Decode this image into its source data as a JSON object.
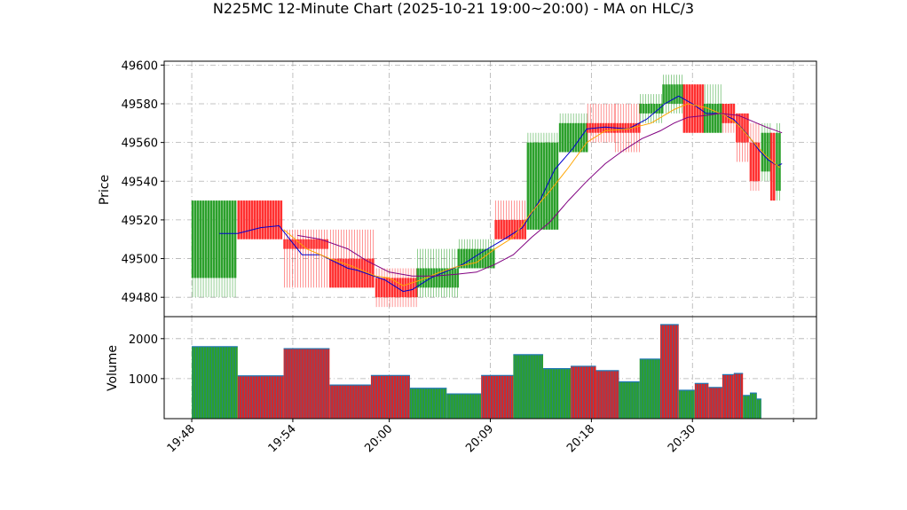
{
  "chart_data": {
    "type": "candlestick",
    "title": "N225MC 12-Minute Chart (2025-10-21 19:00~20:00) - MA on HLC/3",
    "price_panel": {
      "ylabel": "Price",
      "ylim": [
        49470,
        49602
      ],
      "yticks": [
        49480,
        49500,
        49520,
        49540,
        49560,
        49580,
        49600
      ],
      "up_color": "#2ca02c",
      "down_color": "#ff3030",
      "candles": [
        {
          "t": 0.0,
          "w": 1.0,
          "o": 49490,
          "c": 49530,
          "h": 49530,
          "l": 49480
        },
        {
          "t": 1.0,
          "w": 1.0,
          "o": 49530,
          "c": 49510,
          "h": 49530,
          "l": 49510
        },
        {
          "t": 2.0,
          "w": 1.0,
          "o": 49510,
          "c": 49505,
          "h": 49515,
          "l": 49485
        },
        {
          "t": 3.0,
          "w": 1.0,
          "o": 49500,
          "c": 49485,
          "h": 49515,
          "l": 49485
        },
        {
          "t": 4.0,
          "w": 0.9,
          "o": 49490,
          "c": 49480,
          "h": 49495,
          "l": 49475
        },
        {
          "t": 4.9,
          "w": 0.9,
          "o": 49485,
          "c": 49495,
          "h": 49505,
          "l": 49480
        },
        {
          "t": 5.8,
          "w": 0.8,
          "o": 49495,
          "c": 49505,
          "h": 49510,
          "l": 49495
        },
        {
          "t": 6.6,
          "w": 0.7,
          "o": 49520,
          "c": 49510,
          "h": 49530,
          "l": 49510
        },
        {
          "t": 7.3,
          "w": 0.7,
          "o": 49515,
          "c": 49560,
          "h": 49565,
          "l": 49515
        },
        {
          "t": 8.0,
          "w": 0.6,
          "o": 49555,
          "c": 49570,
          "h": 49575,
          "l": 49555
        },
        {
          "t": 8.6,
          "w": 0.6,
          "o": 49570,
          "c": 49565,
          "h": 49580,
          "l": 49560
        },
        {
          "t": 9.2,
          "w": 0.55,
          "o": 49570,
          "c": 49565,
          "h": 49580,
          "l": 49555
        },
        {
          "t": 9.75,
          "w": 0.5,
          "o": 49575,
          "c": 49580,
          "h": 49585,
          "l": 49570
        },
        {
          "t": 10.25,
          "w": 0.45,
          "o": 49580,
          "c": 49590,
          "h": 49595,
          "l": 49575
        },
        {
          "t": 10.7,
          "w": 0.45,
          "o": 49590,
          "c": 49565,
          "h": 49590,
          "l": 49565
        },
        {
          "t": 11.15,
          "w": 0.4,
          "o": 49565,
          "c": 49580,
          "h": 49590,
          "l": 49565
        },
        {
          "t": 11.55,
          "w": 0.3,
          "o": 49580,
          "c": 49570,
          "h": 49580,
          "l": 49565
        },
        {
          "t": 11.85,
          "w": 0.3,
          "o": 49575,
          "c": 49560,
          "h": 49575,
          "l": 49550
        },
        {
          "t": 12.15,
          "w": 0.25,
          "o": 49560,
          "c": 49540,
          "h": 49570,
          "l": 49535
        },
        {
          "t": 12.4,
          "w": 0.2,
          "o": 49545,
          "c": 49565,
          "h": 49570,
          "l": 49540
        },
        {
          "t": 12.6,
          "w": 0.12,
          "o": 49565,
          "c": 49530,
          "h": 49565,
          "l": 49530
        },
        {
          "t": 12.72,
          "w": 0.08,
          "o": 49535,
          "c": 49565,
          "h": 49570,
          "l": 49530
        }
      ],
      "ma_lines": [
        {
          "color": "#0000cc",
          "values": [
            [
              0.6,
              49513
            ],
            [
              1.0,
              49513
            ],
            [
              1.5,
              49516
            ],
            [
              1.9,
              49517
            ],
            [
              2.4,
              49502
            ],
            [
              2.8,
              49502
            ],
            [
              3.4,
              49495
            ],
            [
              3.6,
              49494
            ],
            [
              4.2,
              49489
            ],
            [
              4.6,
              49483
            ],
            [
              4.8,
              49484
            ],
            [
              5.2,
              49490
            ],
            [
              5.6,
              49494
            ],
            [
              5.9,
              49497
            ],
            [
              6.3,
              49503
            ],
            [
              6.8,
              49510
            ],
            [
              7.2,
              49516
            ],
            [
              7.6,
              49531
            ],
            [
              7.9,
              49546
            ],
            [
              8.3,
              49557
            ],
            [
              8.6,
              49567
            ],
            [
              9.0,
              49568
            ],
            [
              9.5,
              49567
            ],
            [
              9.9,
              49572
            ],
            [
              10.3,
              49580
            ],
            [
              10.6,
              49584
            ],
            [
              10.9,
              49580
            ],
            [
              11.2,
              49575
            ],
            [
              11.5,
              49575
            ],
            [
              11.8,
              49572
            ],
            [
              12.1,
              49564
            ],
            [
              12.35,
              49556
            ],
            [
              12.55,
              49551
            ],
            [
              12.75,
              49548
            ],
            [
              12.85,
              49549
            ]
          ]
        },
        {
          "color": "#ffa500",
          "values": [
            [
              2.0,
              49515
            ],
            [
              2.5,
              49505
            ],
            [
              3.0,
              49500
            ],
            [
              3.5,
              49496
            ],
            [
              4.0,
              49491
            ],
            [
              4.3,
              49490
            ],
            [
              4.6,
              49486
            ],
            [
              5.0,
              49489
            ],
            [
              5.4,
              49493
            ],
            [
              5.8,
              49496
            ],
            [
              6.2,
              49498
            ],
            [
              6.6,
              49505
            ],
            [
              7.0,
              49511
            ],
            [
              7.4,
              49524
            ],
            [
              7.8,
              49535
            ],
            [
              8.2,
              49547
            ],
            [
              8.6,
              49560
            ],
            [
              9.0,
              49566
            ],
            [
              9.5,
              49567
            ],
            [
              10.0,
              49570
            ],
            [
              10.5,
              49577
            ],
            [
              10.8,
              49580
            ],
            [
              11.2,
              49578
            ],
            [
              11.6,
              49574
            ],
            [
              11.9,
              49569
            ],
            [
              12.2,
              49561
            ],
            [
              12.5,
              49553
            ],
            [
              12.8,
              49547
            ]
          ]
        },
        {
          "color": "#800080",
          "values": [
            [
              2.3,
              49512
            ],
            [
              2.8,
              49510
            ],
            [
              3.4,
              49505
            ],
            [
              3.8,
              49499
            ],
            [
              4.3,
              49493
            ],
            [
              4.8,
              49491
            ],
            [
              5.3,
              49491
            ],
            [
              5.8,
              49492
            ],
            [
              6.2,
              49493
            ],
            [
              6.6,
              49497
            ],
            [
              7.0,
              49502
            ],
            [
              7.4,
              49511
            ],
            [
              7.8,
              49519
            ],
            [
              8.2,
              49530
            ],
            [
              8.6,
              49540
            ],
            [
              9.0,
              49549
            ],
            [
              9.4,
              49556
            ],
            [
              9.8,
              49562
            ],
            [
              10.2,
              49566
            ],
            [
              10.5,
              49570
            ],
            [
              10.8,
              49573
            ],
            [
              11.2,
              49574
            ],
            [
              11.5,
              49575
            ],
            [
              11.9,
              49574
            ],
            [
              12.2,
              49571
            ],
            [
              12.5,
              49568
            ],
            [
              12.85,
              49565
            ]
          ]
        }
      ]
    },
    "volume_panel": {
      "ylabel": "Volume",
      "ylim": [
        0,
        2550
      ],
      "yticks": [
        1000,
        2000
      ],
      "bars": [
        {
          "t": 0.0,
          "w": 1.0,
          "v": 1800,
          "color": "#2ca02c"
        },
        {
          "t": 1.0,
          "w": 1.0,
          "v": 1070,
          "color": "#d62728"
        },
        {
          "t": 2.0,
          "w": 1.0,
          "v": 1750,
          "color": "#d62728"
        },
        {
          "t": 3.0,
          "w": 0.9,
          "v": 840,
          "color": "#d62728"
        },
        {
          "t": 3.9,
          "w": 0.85,
          "v": 1080,
          "color": "#d62728"
        },
        {
          "t": 4.75,
          "w": 0.8,
          "v": 760,
          "color": "#2ca02c"
        },
        {
          "t": 5.55,
          "w": 0.75,
          "v": 620,
          "color": "#2ca02c"
        },
        {
          "t": 6.3,
          "w": 0.7,
          "v": 1080,
          "color": "#d62728"
        },
        {
          "t": 7.0,
          "w": 0.65,
          "v": 1600,
          "color": "#2ca02c"
        },
        {
          "t": 7.65,
          "w": 0.6,
          "v": 1250,
          "color": "#2ca02c"
        },
        {
          "t": 8.25,
          "w": 0.55,
          "v": 1310,
          "color": "#d62728"
        },
        {
          "t": 8.8,
          "w": 0.5,
          "v": 1200,
          "color": "#d62728"
        },
        {
          "t": 9.3,
          "w": 0.45,
          "v": 920,
          "color": "#2ca02c"
        },
        {
          "t": 9.75,
          "w": 0.45,
          "v": 1490,
          "color": "#2ca02c"
        },
        {
          "t": 10.2,
          "w": 0.4,
          "v": 2350,
          "color": "#d62728"
        },
        {
          "t": 10.6,
          "w": 0.35,
          "v": 710,
          "color": "#2ca02c"
        },
        {
          "t": 10.95,
          "w": 0.3,
          "v": 880,
          "color": "#d62728"
        },
        {
          "t": 11.25,
          "w": 0.3,
          "v": 780,
          "color": "#d62728"
        },
        {
          "t": 11.55,
          "w": 0.25,
          "v": 1100,
          "color": "#d62728"
        },
        {
          "t": 11.8,
          "w": 0.2,
          "v": 1130,
          "color": "#d62728"
        },
        {
          "t": 12.0,
          "w": 0.15,
          "v": 580,
          "color": "#2ca02c"
        },
        {
          "t": 12.15,
          "w": 0.15,
          "v": 640,
          "color": "#2ca02c"
        },
        {
          "t": 12.3,
          "w": 0.1,
          "v": 490,
          "color": "#2ca02c"
        }
      ]
    },
    "xlim": [
      -0.6,
      13.6
    ],
    "xticks": [
      {
        "t": 0.0,
        "label": "19:48"
      },
      {
        "t": 2.2,
        "label": "19:54"
      },
      {
        "t": 4.3,
        "label": "20:00"
      },
      {
        "t": 6.5,
        "label": "20:09"
      },
      {
        "t": 8.7,
        "label": "20:18"
      },
      {
        "t": 10.9,
        "label": "20:30"
      },
      {
        "t": 13.1,
        "label": ""
      }
    ],
    "grid": true
  }
}
